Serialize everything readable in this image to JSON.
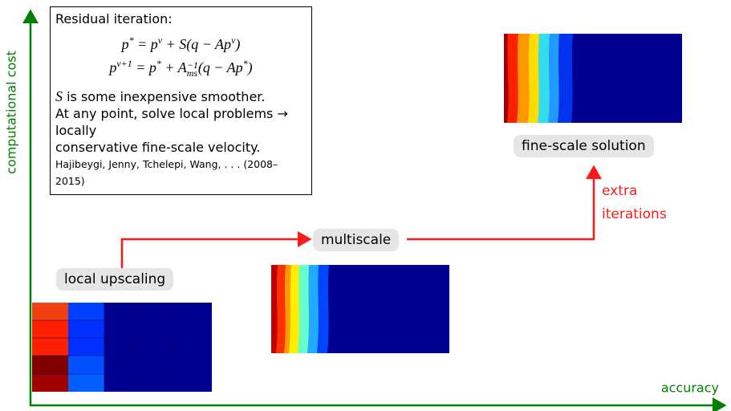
{
  "axes": {
    "y_label": "computational cost",
    "x_label": "accuracy"
  },
  "text_box": {
    "title": "Residual iteration:",
    "equation_1": [
      "p",
      "*",
      " = p",
      "ν",
      " + S(q − Ap",
      "ν",
      ")"
    ],
    "equation_2": [
      "p",
      "ν+1",
      " = p",
      "*",
      " + A",
      "−1",
      "ms",
      "(q − Ap",
      "*",
      ")"
    ],
    "line_1": [
      "S",
      " is some inexpensive smoother."
    ],
    "line_2": "At any point, solve local problems → locally",
    "line_3": "conservative fine-scale velocity.",
    "citation": "Hajibeygi, Jenny, Tchelepi, Wang, . . . (2008–2015)"
  },
  "labels": {
    "local": "local upscaling",
    "multiscale": "multiscale",
    "fine": "fine-scale solution",
    "extra": [
      "extra",
      "iterations"
    ]
  }
}
